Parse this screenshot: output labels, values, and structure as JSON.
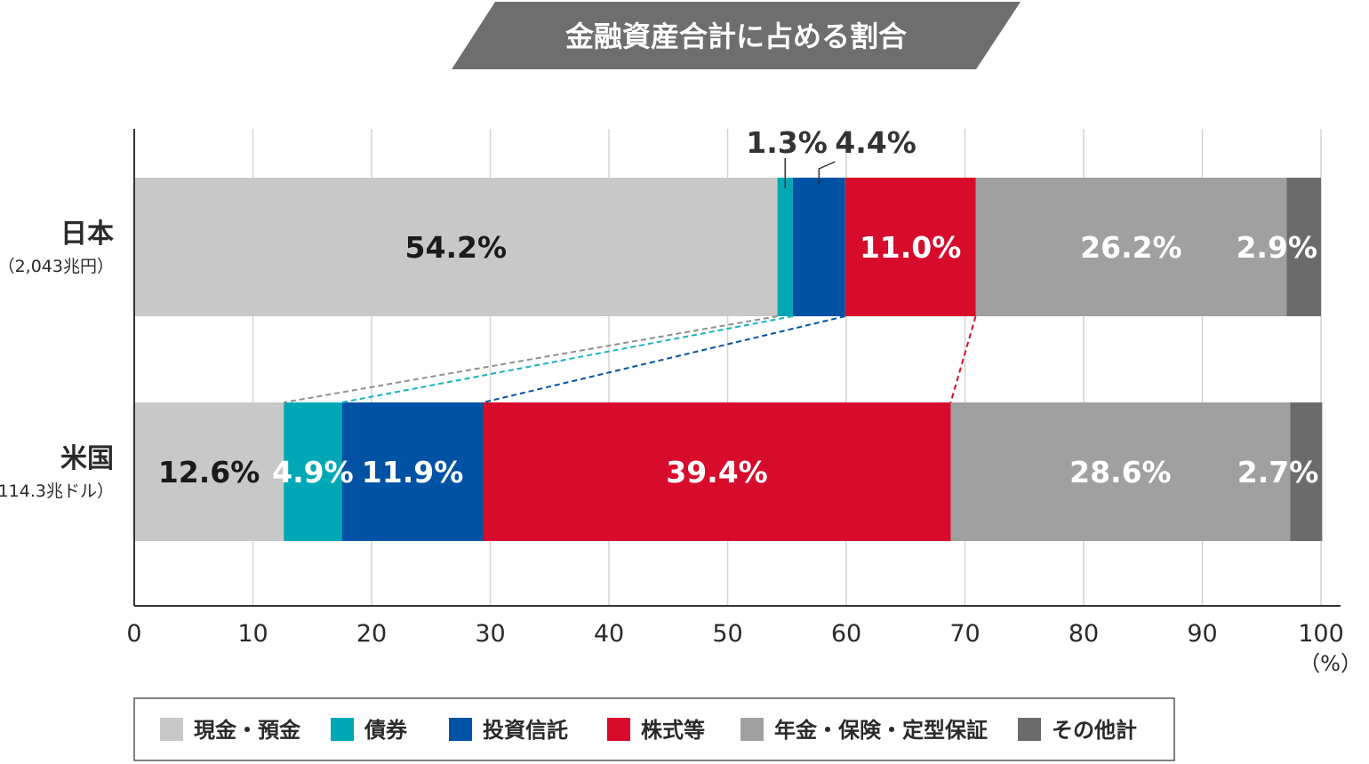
{
  "chart_data": {
    "type": "bar",
    "orientation": "horizontal",
    "stacked": true,
    "title": "金融資産合計に占める割合",
    "xlim": [
      0,
      100
    ],
    "xticks": [
      0,
      10,
      20,
      30,
      40,
      50,
      60,
      70,
      80,
      90,
      100
    ],
    "xunit": "（%）",
    "grid": true,
    "categories": [
      {
        "name": "日本",
        "sub": "（2,043兆円）"
      },
      {
        "name": "米国",
        "sub": "（114.3兆ドル）"
      }
    ],
    "series": [
      {
        "name": "現金・預金",
        "color": "#c8c8c8",
        "label_color": "#1a1a1a",
        "connector_color": "#8f8f8f",
        "values": [
          54.2,
          12.6
        ]
      },
      {
        "name": "債券",
        "color": "#00a8b5",
        "label_color": "#ffffff",
        "connector_color": "#19b4c0",
        "values": [
          1.3,
          4.9
        ]
      },
      {
        "name": "投資信託",
        "color": "#0052a5",
        "label_color": "#ffffff",
        "connector_color": "#0052a5",
        "values": [
          4.4,
          11.9
        ]
      },
      {
        "name": "株式等",
        "color": "#d70c2c",
        "label_color": "#ffffff",
        "connector_color": "#d70c2c",
        "values": [
          11.0,
          39.4
        ]
      },
      {
        "name": "年金・保険・定型保証",
        "color": "#a0a0a0",
        "label_color": "#ffffff",
        "connector_color": null,
        "values": [
          26.2,
          28.6
        ]
      },
      {
        "name": "その他計",
        "color": "#6b6b6b",
        "label_color": "#ffffff",
        "connector_color": null,
        "values": [
          2.9,
          2.7
        ]
      }
    ],
    "data_labels": [
      [
        "54.2%",
        "1.3%",
        "4.4%",
        "11.0%",
        "26.2%",
        "2.9%"
      ],
      [
        "12.6%",
        "4.9%",
        "11.9%",
        "39.4%",
        "28.6%",
        "2.7%"
      ]
    ],
    "outside_labels": [
      "1.3%",
      "4.4%"
    ],
    "legend": "bottom"
  },
  "colors": {
    "title_banner": "#6e6e6e",
    "axis": "#333333",
    "grid": "#d4d4d4",
    "text": "#2a2a2a"
  }
}
